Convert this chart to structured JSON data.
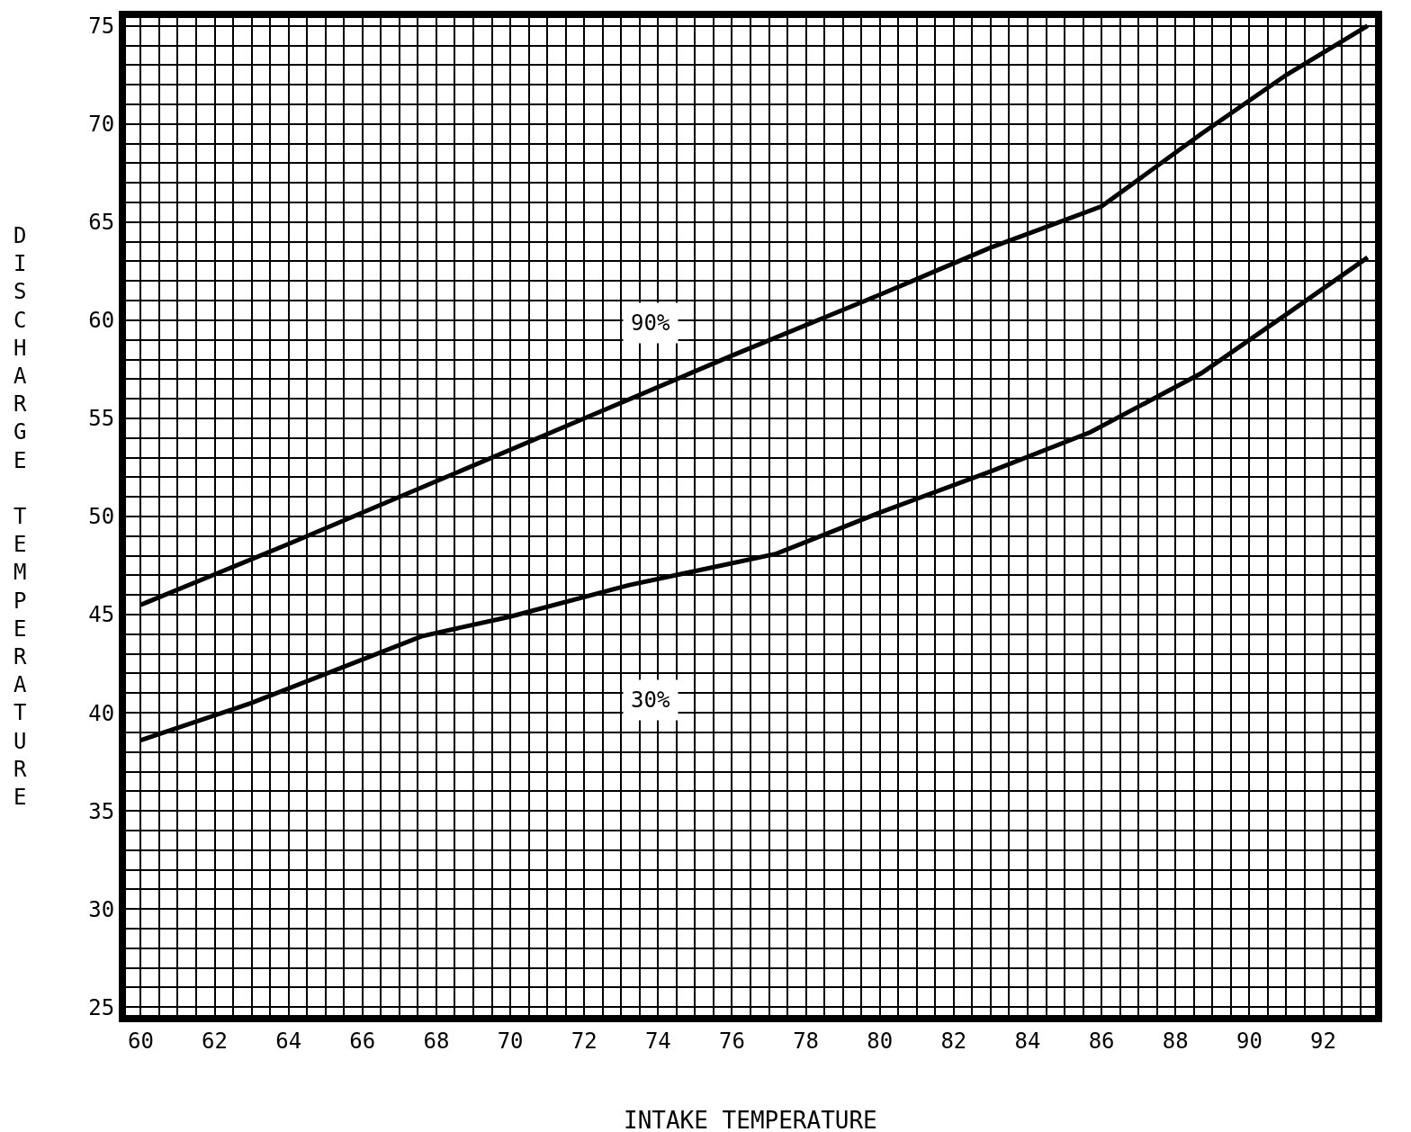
{
  "chart_data": {
    "type": "line",
    "xlabel": "INTAKE TEMPERATURE",
    "ylabel": "DISCHARGE TEMPERATURE",
    "series": [
      {
        "color": "#000000",
        "x": [
          60,
          64,
          68,
          72,
          76,
          80,
          83,
          86,
          88.7,
          91,
          93.2
        ],
        "values": [
          45.5,
          48.6,
          51.8,
          55.0,
          58.2,
          61.3,
          63.7,
          65.8,
          69.5,
          72.5,
          75.0
        ]
      },
      {
        "color": "#000000",
        "x": [
          60,
          63,
          67.6,
          70,
          73.2,
          77.2,
          80,
          83,
          85.7,
          88.7,
          91,
          93.2
        ],
        "values": [
          38.6,
          40.5,
          43.9,
          44.9,
          46.5,
          48.1,
          50.2,
          52.3,
          54.3,
          57.3,
          60.3,
          63.2
        ]
      }
    ],
    "annotations": [
      "90%",
      "30%"
    ],
    "xlim": [
      59.6,
      93.4
    ],
    "ylim": [
      24.6,
      75.4
    ],
    "xticks": [
      60,
      62,
      64,
      66,
      68,
      70,
      72,
      74,
      76,
      78,
      80,
      82,
      84,
      86,
      88,
      90,
      92
    ],
    "yticks": [
      25,
      30,
      35,
      40,
      45,
      50,
      55,
      60,
      65,
      70,
      75
    ],
    "grid": true,
    "legend": false,
    "marker": "none",
    "line_style": "solid"
  }
}
